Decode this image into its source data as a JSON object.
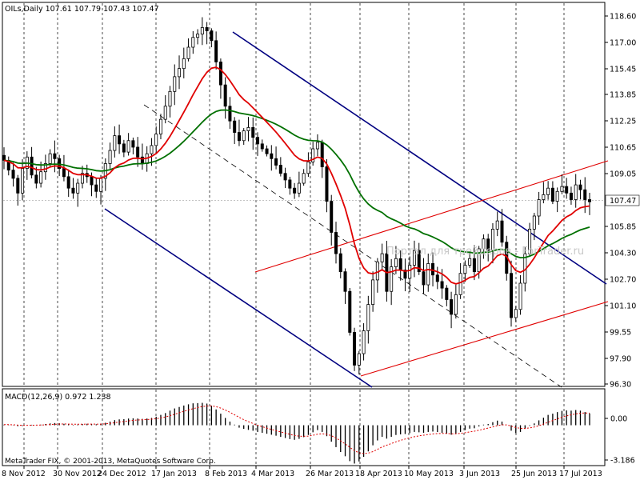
{
  "window": {
    "main_header": "OILs,Daily  107.61 107.79 107.43 107.47",
    "macd_header": "MACD(12,26,9) 0.972 1.238",
    "copyright": "MetaTrader FIX, © 2001-2013, MetaQuotes Software Corp.",
    "watermark": "Портал для трейдеров - ForTrader.ru",
    "current_price_label": "107.47"
  },
  "colors": {
    "background": "#ffffff",
    "candle": "#000000",
    "ma_fast": "#e00000",
    "ma_slow": "#007000",
    "channel_blue": "#000080",
    "channel_red": "#e00000",
    "dashed_trend": "#000000",
    "macd_hist": "#000000",
    "macd_signal": "#e00000",
    "grid": "#000000"
  },
  "chart_data": [
    {
      "type": "candlestick",
      "title": "OILs,Daily",
      "ohlc_last": {
        "open": 107.61,
        "high": 107.79,
        "low": 107.43,
        "close": 107.47
      },
      "y_ticks": [
        "118.60",
        "117.00",
        "115.45",
        "113.85",
        "112.25",
        "110.65",
        "109.05",
        "107.47",
        "105.85",
        "104.30",
        "102.70",
        "101.10",
        "99.55",
        "97.90",
        "96.30"
      ],
      "x_ticks": [
        "8 Nov 2012",
        "30 Nov 2012",
        "24 Dec 2012",
        "17 Jan 2013",
        "8 Feb 2013",
        "4 Mar 2013",
        "26 Mar 2013",
        "18 Apr 2013",
        "10 May 2013",
        "3 Jun 2013",
        "25 Jun 2013",
        "17 Jul 2013"
      ],
      "ylim": [
        96.3,
        119.0
      ],
      "grid": "vertical dashed at date ticks",
      "close_series": [
        110.0,
        109.4,
        108.9,
        108.0,
        109.5,
        110.2,
        109.1,
        108.6,
        109.3,
        109.8,
        110.4,
        110.1,
        109.5,
        109.0,
        108.3,
        108.0,
        108.6,
        109.2,
        109.0,
        108.5,
        108.1,
        108.9,
        109.8,
        110.6,
        111.5,
        111.0,
        110.5,
        111.2,
        110.8,
        110.2,
        109.8,
        110.4,
        110.9,
        111.6,
        112.5,
        113.3,
        114.2,
        115.1,
        115.6,
        116.2,
        116.9,
        117.5,
        117.7,
        118.1,
        117.9,
        117.3,
        116.0,
        114.6,
        113.3,
        112.4,
        111.7,
        111.2,
        111.8,
        112.0,
        111.4,
        111.0,
        110.7,
        110.4,
        110.1,
        109.7,
        109.2,
        108.8,
        108.3,
        108.0,
        108.6,
        109.2,
        109.9,
        110.7,
        111.1,
        109.6,
        107.5,
        105.6,
        104.3,
        103.2,
        102.0,
        99.5,
        97.5,
        98.2,
        99.6,
        101.2,
        102.7,
        103.8,
        104.3,
        102.0,
        103.5,
        104.0,
        103.3,
        102.8,
        103.6,
        104.5,
        103.2,
        102.4,
        103.7,
        103.0,
        102.6,
        102.2,
        101.5,
        100.6,
        101.8,
        103.1,
        103.6,
        104.0,
        103.2,
        104.6,
        105.2,
        104.5,
        105.8,
        106.3,
        105.0,
        103.1,
        100.4,
        100.9,
        102.5,
        104.3,
        105.8,
        106.6,
        107.6,
        107.9,
        108.3,
        107.5,
        108.1,
        108.4,
        108.0,
        107.6,
        108.5,
        108.2,
        107.6,
        107.47
      ],
      "moving_averages": [
        {
          "color": "red",
          "role": "fast"
        },
        {
          "color": "green",
          "role": "slow"
        }
      ]
    },
    {
      "type": "bar",
      "title": "MACD(12,26,9)",
      "macd": 0.972,
      "signal": 1.238,
      "y_ticks": [
        "0.00",
        "-3.186"
      ],
      "ylim": [
        -3.186,
        2.6
      ],
      "hist_series": [
        0.05,
        0.03,
        -0.02,
        -0.08,
        -0.06,
        0.0,
        0.04,
        0.02,
        0.05,
        0.1,
        0.15,
        0.18,
        0.16,
        0.12,
        0.08,
        0.04,
        0.06,
        0.1,
        0.12,
        0.1,
        0.08,
        0.12,
        0.2,
        0.3,
        0.42,
        0.48,
        0.5,
        0.55,
        0.57,
        0.55,
        0.52,
        0.55,
        0.6,
        0.7,
        0.85,
        1.0,
        1.2,
        1.38,
        1.5,
        1.62,
        1.72,
        1.8,
        1.82,
        1.84,
        1.78,
        1.6,
        1.3,
        0.95,
        0.6,
        0.3,
        0.05,
        -0.2,
        -0.3,
        -0.38,
        -0.45,
        -0.55,
        -0.62,
        -0.7,
        -0.78,
        -0.86,
        -0.96,
        -1.05,
        -1.14,
        -1.2,
        -1.12,
        -0.98,
        -0.8,
        -0.58,
        -0.4,
        -0.55,
        -0.9,
        -1.35,
        -1.8,
        -2.2,
        -2.55,
        -2.95,
        -3.15,
        -2.98,
        -2.6,
        -2.15,
        -1.65,
        -1.25,
        -0.95,
        -1.1,
        -0.95,
        -0.8,
        -0.75,
        -0.72,
        -0.65,
        -0.55,
        -0.58,
        -0.62,
        -0.55,
        -0.52,
        -0.56,
        -0.62,
        -0.7,
        -0.78,
        -0.7,
        -0.55,
        -0.4,
        -0.28,
        -0.25,
        -0.1,
        0.05,
        0.1,
        0.25,
        0.38,
        0.3,
        0.0,
        -0.45,
        -0.65,
        -0.55,
        -0.3,
        -0.05,
        0.15,
        0.4,
        0.62,
        0.85,
        0.95,
        1.08,
        1.18,
        1.22,
        1.2,
        1.25,
        1.2,
        1.08,
        0.972
      ]
    }
  ]
}
